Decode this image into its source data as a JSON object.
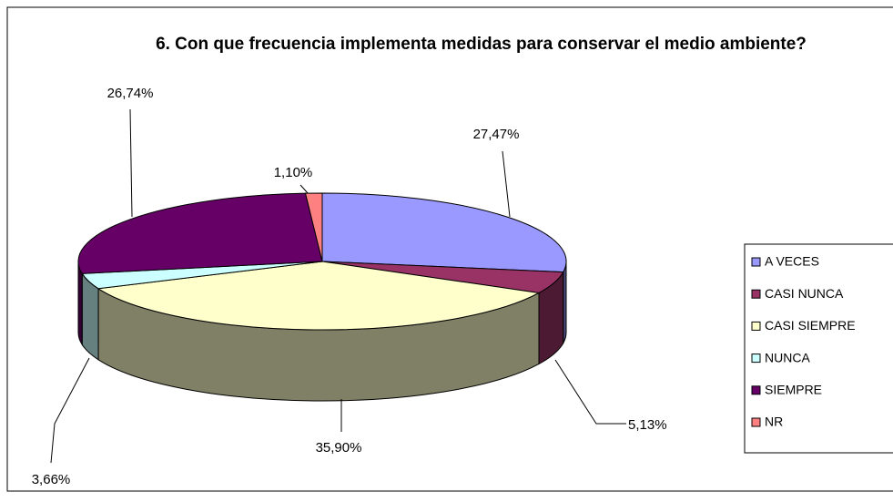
{
  "chart_data": {
    "type": "pie3d",
    "title": "6. Con que frecuencia implementa medidas para conservar el medio ambiente?",
    "categories": [
      "A VECES",
      "CASI NUNCA",
      "CASI SIEMPRE",
      "NUNCA",
      "SIEMPRE",
      "NR"
    ],
    "values": [
      27.47,
      5.13,
      35.9,
      3.66,
      26.74,
      1.1
    ],
    "value_labels": [
      "27,47%",
      "5,13%",
      "35,90%",
      "3,66%",
      "26,74%",
      "1,10%"
    ],
    "colors": [
      "#9999ff",
      "#993366",
      "#ffffcc",
      "#ccffff",
      "#660066",
      "#ff8080"
    ],
    "legend": "right"
  }
}
